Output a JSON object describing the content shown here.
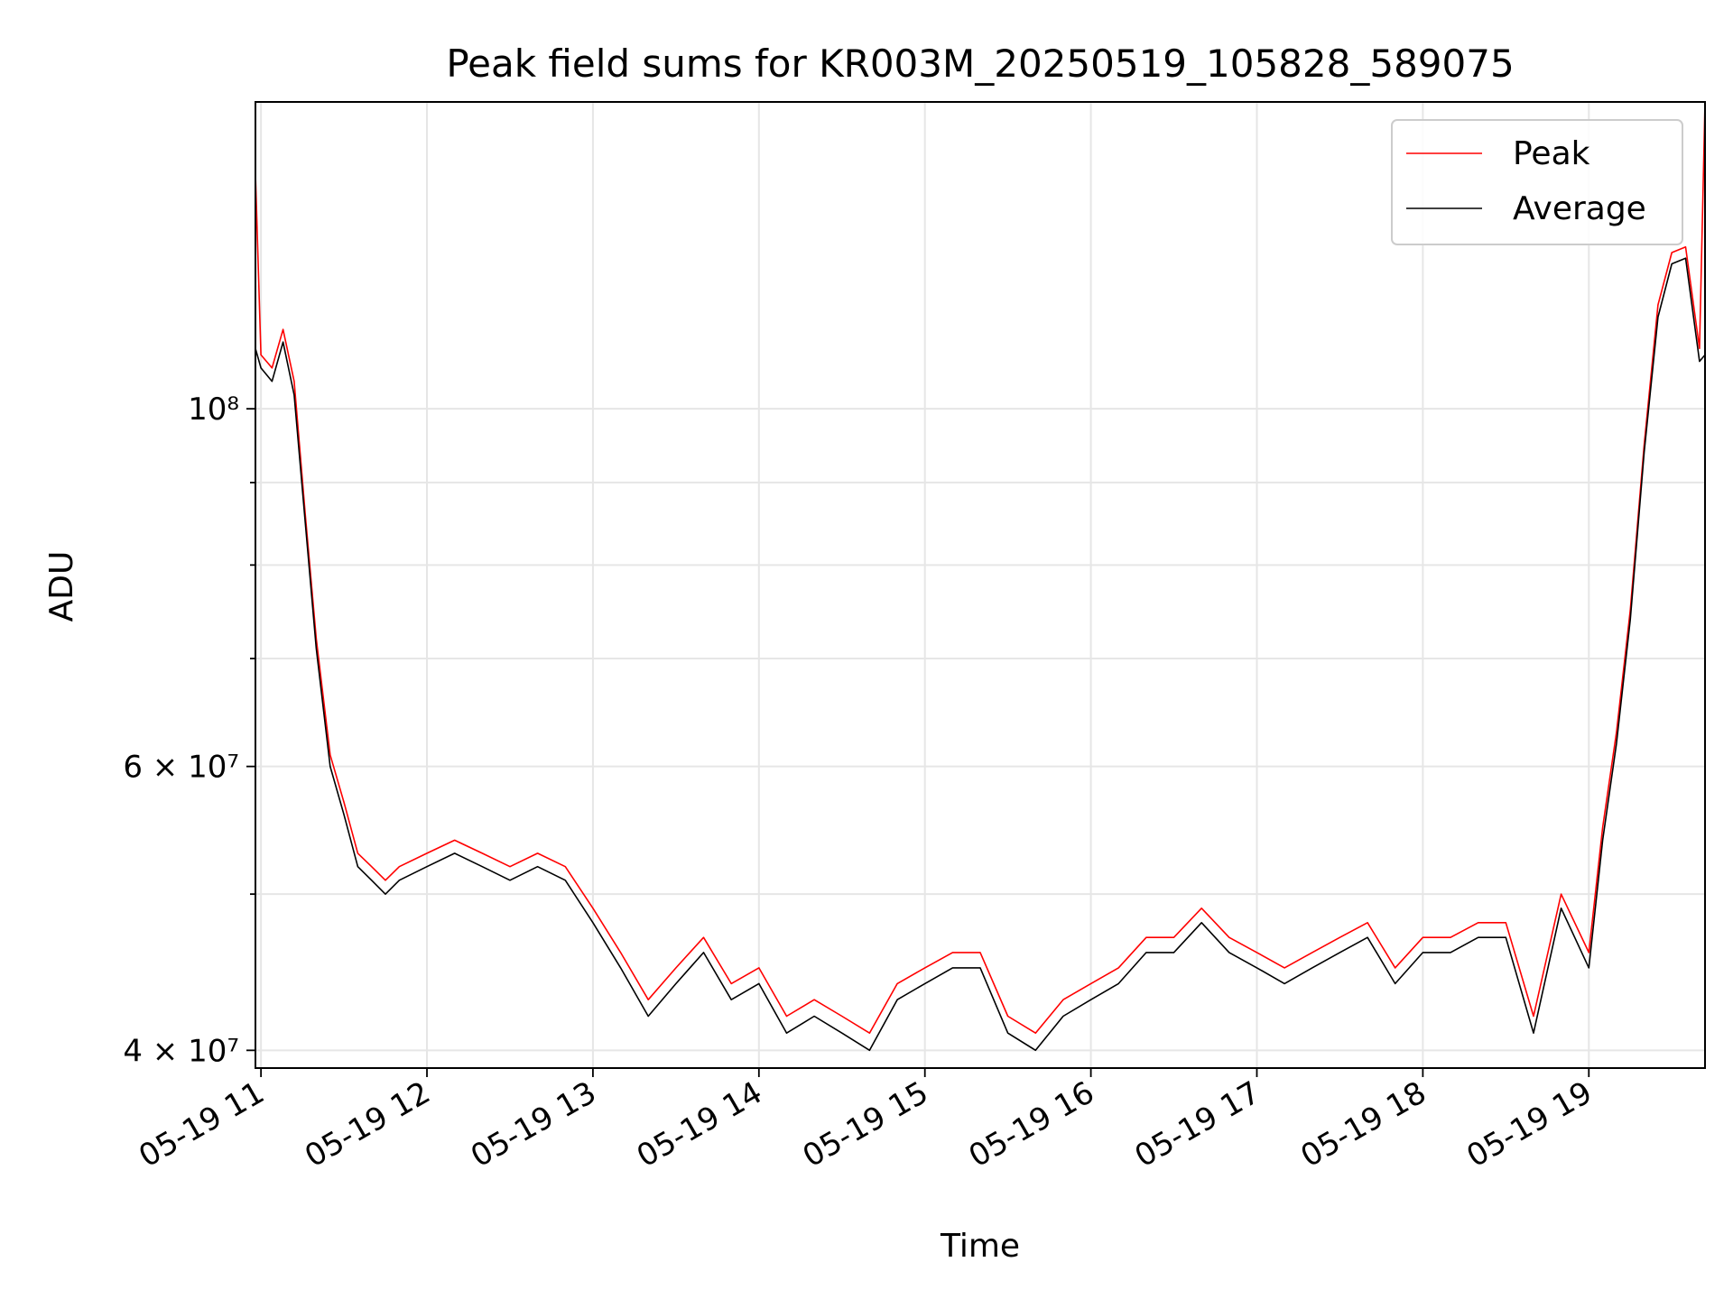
{
  "chart_data": {
    "type": "line",
    "title": "Peak field sums for KR003M_20250519_105828_589075",
    "xlabel": "Time",
    "ylabel": "ADU",
    "yscale": "log",
    "xlim": [
      "2025-05-19 10:58",
      "2025-05-19 19:42"
    ],
    "ylim": [
      39000000,
      155000000
    ],
    "grid": true,
    "legend_position": "upper-right",
    "x_tick_labels": [
      "05-19 11",
      "05-19 12",
      "05-19 13",
      "05-19 14",
      "05-19 15",
      "05-19 16",
      "05-19 17",
      "05-19 18",
      "05-19 19"
    ],
    "y_major_ticks": [
      {
        "value": 40000000,
        "label": "4 × 10⁷"
      },
      {
        "value": 60000000,
        "label": "6 × 10⁷"
      },
      {
        "value": 100000000,
        "label": "10⁸"
      }
    ],
    "y_minor_ticks": [
      50000000,
      70000000,
      80000000,
      90000000
    ],
    "x": [
      "2025-05-19 10:58",
      "2025-05-19 11:00",
      "2025-05-19 11:04",
      "2025-05-19 11:08",
      "2025-05-19 11:12",
      "2025-05-19 11:16",
      "2025-05-19 11:20",
      "2025-05-19 11:25",
      "2025-05-19 11:30",
      "2025-05-19 11:35",
      "2025-05-19 11:40",
      "2025-05-19 11:45",
      "2025-05-19 11:50",
      "2025-05-19 12:00",
      "2025-05-19 12:10",
      "2025-05-19 12:20",
      "2025-05-19 12:30",
      "2025-05-19 12:40",
      "2025-05-19 12:50",
      "2025-05-19 13:00",
      "2025-05-19 13:10",
      "2025-05-19 13:20",
      "2025-05-19 13:30",
      "2025-05-19 13:40",
      "2025-05-19 13:50",
      "2025-05-19 14:00",
      "2025-05-19 14:10",
      "2025-05-19 14:20",
      "2025-05-19 14:30",
      "2025-05-19 14:40",
      "2025-05-19 14:50",
      "2025-05-19 15:00",
      "2025-05-19 15:10",
      "2025-05-19 15:20",
      "2025-05-19 15:30",
      "2025-05-19 15:40",
      "2025-05-19 15:50",
      "2025-05-19 16:00",
      "2025-05-19 16:10",
      "2025-05-19 16:20",
      "2025-05-19 16:30",
      "2025-05-19 16:40",
      "2025-05-19 16:50",
      "2025-05-19 17:00",
      "2025-05-19 17:10",
      "2025-05-19 17:20",
      "2025-05-19 17:30",
      "2025-05-19 17:40",
      "2025-05-19 17:50",
      "2025-05-19 18:00",
      "2025-05-19 18:10",
      "2025-05-19 18:20",
      "2025-05-19 18:30",
      "2025-05-19 18:40",
      "2025-05-19 18:50",
      "2025-05-19 19:00",
      "2025-05-19 19:05",
      "2025-05-19 19:10",
      "2025-05-19 19:15",
      "2025-05-19 19:20",
      "2025-05-19 19:25",
      "2025-05-19 19:30",
      "2025-05-19 19:35",
      "2025-05-19 19:40",
      "2025-05-19 19:42"
    ],
    "series": [
      {
        "name": "Peak",
        "color": "#ff0000",
        "values": [
          140000000,
          108000000,
          106000000,
          112000000,
          104000000,
          86000000,
          72000000,
          61000000,
          57000000,
          53000000,
          52000000,
          51000000,
          52000000,
          53000000,
          54000000,
          53000000,
          52000000,
          53000000,
          52000000,
          49000000,
          46000000,
          43000000,
          45000000,
          47000000,
          44000000,
          45000000,
          42000000,
          43000000,
          42000000,
          41000000,
          44000000,
          45000000,
          46000000,
          46000000,
          42000000,
          41000000,
          43000000,
          44000000,
          45000000,
          47000000,
          47000000,
          49000000,
          47000000,
          46000000,
          45000000,
          46000000,
          47000000,
          48000000,
          45000000,
          47000000,
          47000000,
          48000000,
          48000000,
          42000000,
          50000000,
          46000000,
          55000000,
          63000000,
          75000000,
          95000000,
          116000000,
          125000000,
          126000000,
          109000000,
          155000000
        ]
      },
      {
        "name": "Average",
        "color": "#000000",
        "values": [
          109000000,
          106000000,
          104000000,
          110000000,
          102000000,
          85000000,
          71000000,
          60000000,
          56000000,
          52000000,
          51000000,
          50000000,
          51000000,
          52000000,
          53000000,
          52000000,
          51000000,
          52000000,
          51000000,
          48000000,
          45000000,
          42000000,
          44000000,
          46000000,
          43000000,
          44000000,
          41000000,
          42000000,
          41000000,
          40000000,
          43000000,
          44000000,
          45000000,
          45000000,
          41000000,
          40000000,
          42000000,
          43000000,
          44000000,
          46000000,
          46000000,
          48000000,
          46000000,
          45000000,
          44000000,
          45000000,
          46000000,
          47000000,
          44000000,
          46000000,
          46000000,
          47000000,
          47000000,
          41000000,
          49000000,
          45000000,
          54000000,
          62000000,
          74000000,
          94000000,
          114000000,
          123000000,
          124000000,
          107000000,
          108000000
        ]
      }
    ]
  }
}
